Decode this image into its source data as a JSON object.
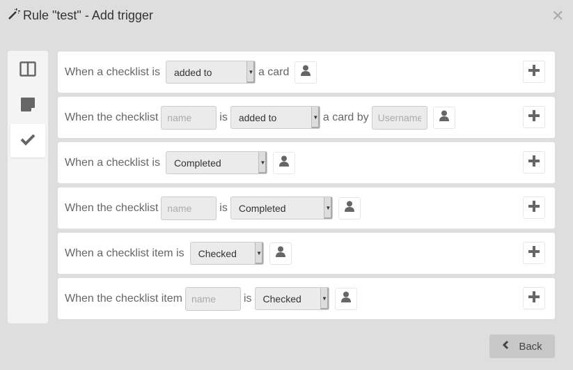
{
  "dialog": {
    "title": "Rule \"test\" - Add trigger",
    "title_icon": "magic-wand-icon",
    "close_icon": "close-icon"
  },
  "sidebar": {
    "tabs": [
      {
        "icon": "board-columns-icon"
      },
      {
        "icon": "card-icon"
      },
      {
        "icon": "checkmark-icon",
        "active": true
      }
    ]
  },
  "rows": [
    {
      "pre": "When a checklist is",
      "select": "added to",
      "post": "a card"
    },
    {
      "pre": "When the checklist",
      "name_placeholder": "name",
      "is": "is",
      "select": "added to",
      "post": "a card by",
      "user_placeholder": "Username"
    },
    {
      "pre": "When a checklist is",
      "select": "Completed"
    },
    {
      "pre": "When the checklist",
      "name_placeholder": "name",
      "is": "is",
      "select": "Completed"
    },
    {
      "pre": "When a checklist item is",
      "select": "Checked"
    },
    {
      "pre": "When the checklist item",
      "name_placeholder": "name",
      "is": "is",
      "select": "Checked"
    }
  ],
  "footer": {
    "back_label": "Back"
  },
  "colors": {
    "background": "#dedede",
    "row": "#ffffff",
    "icon": "#666666"
  }
}
